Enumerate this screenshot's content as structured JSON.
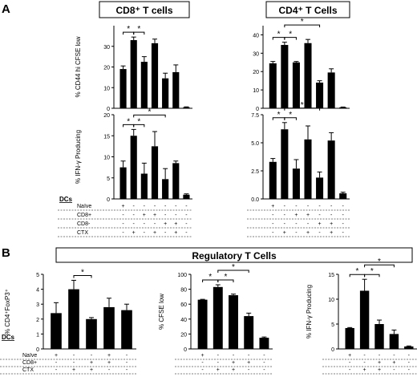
{
  "figure": {
    "panel_a_letter": "A",
    "panel_b_letter": "B",
    "cd8_header": "CD8⁺ T cells",
    "cd4_header": "CD4⁺ T Cells",
    "treg_header": "Regulatory T Cells",
    "dcs_label": "DCs",
    "row_labels_a": [
      "Naïve",
      "CD8+",
      "CD8-",
      "CTX"
    ],
    "row_labels_b": [
      "Naïve",
      "CD8+",
      "CTX"
    ],
    "sig_symbol": "*"
  },
  "chart_data": [
    {
      "id": "cd8_cfse",
      "type": "bar",
      "ylabel": "% CD44 hi CFSE low",
      "ylim": [
        0,
        40
      ],
      "yticks": [
        0,
        10,
        20,
        30
      ],
      "values": [
        19,
        33,
        22.5,
        31.5,
        14.5,
        17.5,
        0.5
      ],
      "errors": [
        1.5,
        1.5,
        2.5,
        2,
        2.5,
        3.5,
        0.2
      ],
      "sig_brackets": [
        [
          0,
          1
        ],
        [
          1,
          2
        ]
      ],
      "conditions": [
        [
          "+",
          "-",
          "-",
          "-",
          "-",
          "-",
          "-"
        ],
        [
          "-",
          "-",
          "+",
          "+",
          "-",
          "-",
          "-"
        ],
        [
          "-",
          "-",
          "-",
          "-",
          "+",
          "+",
          "-"
        ],
        [
          "-",
          "+",
          "-",
          "+",
          "-",
          "+",
          "-"
        ]
      ]
    },
    {
      "id": "cd4_cfse",
      "type": "bar",
      "ylim": [
        0,
        45
      ],
      "yticks": [
        0,
        10,
        20,
        30,
        40
      ],
      "values": [
        24.5,
        34.5,
        25,
        35.5,
        14,
        19.5,
        0.5
      ],
      "errors": [
        1,
        1.5,
        0.5,
        2,
        1,
        2,
        0.2
      ],
      "sig_brackets": [
        [
          0,
          1
        ],
        [
          1,
          2
        ],
        [
          1,
          4
        ]
      ],
      "conditions": [
        [
          "+",
          "-",
          "-",
          "-",
          "-",
          "-",
          "-"
        ],
        [
          "-",
          "-",
          "+",
          "+",
          "-",
          "-",
          "-"
        ],
        [
          "-",
          "-",
          "-",
          "-",
          "+",
          "+",
          "-"
        ],
        [
          "-",
          "+",
          "-",
          "+",
          "-",
          "+",
          "-"
        ]
      ]
    },
    {
      "id": "cd8_ifng",
      "type": "bar",
      "ylabel": "% IFN-γ Producing",
      "ylim": [
        0,
        20
      ],
      "yticks": [
        0,
        5,
        10,
        15,
        20
      ],
      "values": [
        7.5,
        15,
        6,
        12.5,
        4.7,
        8.5,
        1
      ],
      "errors": [
        1.5,
        1.5,
        2.5,
        3.5,
        2.5,
        0.5,
        0.2
      ],
      "sig_brackets": [
        [
          0,
          1
        ],
        [
          1,
          2
        ],
        [
          1,
          4
        ]
      ],
      "conditions": [
        [
          "+",
          "-",
          "-",
          "-",
          "-",
          "-",
          "-"
        ],
        [
          "-",
          "-",
          "+",
          "+",
          "-",
          "-",
          "-"
        ],
        [
          "-",
          "-",
          "-",
          "-",
          "+",
          "+",
          "-"
        ],
        [
          "-",
          "+",
          "-",
          "+",
          "-",
          "+",
          "-"
        ]
      ]
    },
    {
      "id": "cd4_ifng",
      "type": "bar",
      "ylim": [
        0,
        7.5
      ],
      "yticks": [
        0.0,
        2.5,
        5.0,
        7.5
      ],
      "values": [
        3.3,
        6.2,
        2.7,
        5.3,
        1.9,
        5.2,
        0.5
      ],
      "errors": [
        0.3,
        0.6,
        0.8,
        1.2,
        0.5,
        0.7,
        0.1
      ],
      "sig_brackets": [
        [
          0,
          1
        ],
        [
          1,
          2
        ],
        [
          1,
          4
        ]
      ],
      "conditions": [
        [
          "+",
          "-",
          "-",
          "-",
          "-",
          "-",
          "-"
        ],
        [
          "-",
          "-",
          "+",
          "+",
          "-",
          "-",
          "-"
        ],
        [
          "-",
          "-",
          "-",
          "-",
          "+",
          "+",
          "-"
        ],
        [
          "-",
          "+",
          "-",
          "+",
          "-",
          "+",
          "-"
        ]
      ]
    },
    {
      "id": "treg_foxp3",
      "type": "bar",
      "ylabel": "% CD4⁺FoxP3⁺",
      "ylim": [
        0,
        5
      ],
      "yticks": [
        0,
        1,
        2,
        3,
        4,
        5
      ],
      "values": [
        2.4,
        4.0,
        2.0,
        2.8,
        2.6
      ],
      "errors": [
        0.7,
        0.6,
        0.1,
        0.6,
        0.4
      ],
      "sig_brackets": [
        [
          1,
          2
        ]
      ],
      "conditions": [
        [
          "+",
          "-",
          "-",
          "+",
          "-"
        ],
        [
          "-",
          "-",
          "+",
          "+",
          "-"
        ],
        [
          "-",
          "+",
          "+",
          "-",
          "-"
        ]
      ]
    },
    {
      "id": "treg_cfse",
      "type": "bar",
      "ylabel": "% CFSE low",
      "ylim": [
        0,
        100
      ],
      "yticks": [
        0,
        20,
        40,
        60,
        80,
        100
      ],
      "values": [
        66,
        83,
        72,
        44,
        15
      ],
      "errors": [
        0.5,
        3,
        1.5,
        4,
        1
      ],
      "sig_brackets": [
        [
          0,
          1
        ],
        [
          1,
          2
        ],
        [
          1,
          3
        ]
      ],
      "conditions": [
        [
          "+",
          "-",
          "-",
          "-",
          "-"
        ],
        [
          "-",
          "-",
          "+",
          "+",
          "-"
        ],
        [
          "-",
          "+",
          "+",
          "-",
          "-"
        ]
      ]
    },
    {
      "id": "treg_ifng",
      "type": "bar",
      "ylabel": "% IFN-γ Producing",
      "ylim": [
        0,
        15
      ],
      "yticks": [
        0,
        5,
        10,
        15
      ],
      "values": [
        4.2,
        11.7,
        5,
        3,
        0.5
      ],
      "errors": [
        0.1,
        2.3,
        0.8,
        0.8,
        0.1
      ],
      "sig_brackets": [
        [
          0,
          1
        ],
        [
          1,
          2
        ],
        [
          1,
          3
        ]
      ],
      "conditions": [
        [
          "+",
          "-",
          "-",
          "-",
          "-"
        ],
        [
          "-",
          "-",
          "+",
          "+",
          "-"
        ],
        [
          "-",
          "+",
          "+",
          "-",
          "-"
        ]
      ]
    }
  ]
}
